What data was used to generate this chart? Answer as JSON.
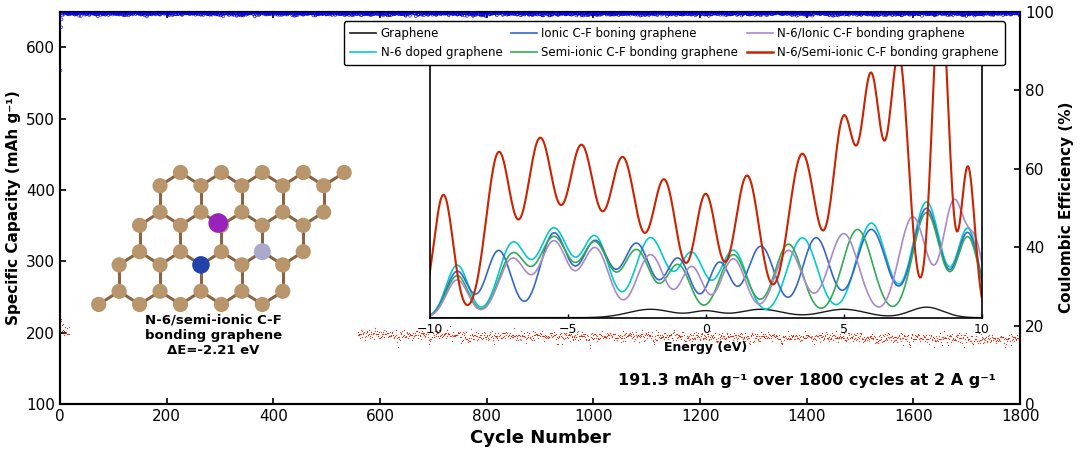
{
  "xlabel": "Cycle Number",
  "ylabel_left": "Specific Capacity (mAh g⁻¹)",
  "ylabel_right": "Coulombic Efficiency (%)",
  "xlim": [
    0,
    1800
  ],
  "ylim_left": [
    100,
    650
  ],
  "ylim_right": [
    0,
    100
  ],
  "yticks_left": [
    100,
    200,
    300,
    400,
    500,
    600
  ],
  "yticks_right": [
    0,
    20,
    40,
    60,
    80,
    100
  ],
  "xticks": [
    0,
    200,
    400,
    600,
    800,
    1000,
    1200,
    1400,
    1600,
    1800
  ],
  "annotation": "191.3 mAh g⁻¹ over 1800 cycles at 2 A g⁻¹",
  "background_color": "#ffffff",
  "inset_label": "N-6/semi-ionic C-F\nbonding graphene\nΔE=-2.21 eV",
  "legend_entries": [
    {
      "label": "Graphene",
      "color": "#1a1a1a",
      "lw": 1.2
    },
    {
      "label": "N-6 doped graphene",
      "color": "#00cccc",
      "lw": 1.2
    },
    {
      "label": "Ionic C-F boning graphene",
      "color": "#3366cc",
      "lw": 1.2
    },
    {
      "label": "Semi-ionic C-F bonding graphene",
      "color": "#33aa55",
      "lw": 1.2
    },
    {
      "label": "N-6/Ionic C-F bonding graphene",
      "color": "#aa88cc",
      "lw": 1.2
    },
    {
      "label": "N-6/Semi-ionic C-F bonding graphene",
      "color": "#cc2200",
      "lw": 1.8
    }
  ],
  "main_capacity_color": "#cc2200",
  "main_ce_color": "#0000cc",
  "atom_color": "#b8956a",
  "bond_color": "#8a6545",
  "N_color": "#2244aa",
  "F_color": "#aaaacc",
  "Li_color": "#9922bb"
}
